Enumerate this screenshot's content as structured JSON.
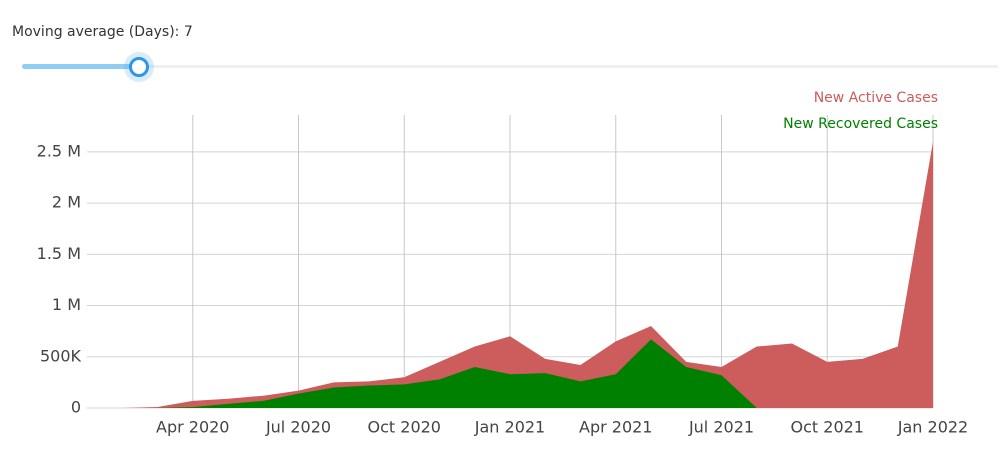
{
  "slider": {
    "label": "Moving average (Days):",
    "value": 7
  },
  "chart_data": {
    "type": "area",
    "x": [
      "2020-01",
      "2020-02",
      "2020-03",
      "2020-04",
      "2020-05",
      "2020-06",
      "2020-07",
      "2020-08",
      "2020-09",
      "2020-10",
      "2020-11",
      "2020-12",
      "2021-01",
      "2021-02",
      "2021-03",
      "2021-04",
      "2021-05",
      "2021-06",
      "2021-07",
      "2021-08",
      "2021-09",
      "2021-10",
      "2021-11",
      "2021-12",
      "2022-01"
    ],
    "series": [
      {
        "name": "New Active Cases",
        "color": "#cd5c5c",
        "values": [
          0,
          0,
          10000,
          70000,
          90000,
          120000,
          170000,
          250000,
          260000,
          300000,
          450000,
          600000,
          700000,
          480000,
          420000,
          650000,
          800000,
          450000,
          400000,
          600000,
          630000,
          450000,
          480000,
          600000,
          2600000
        ]
      },
      {
        "name": "New Recovered Cases",
        "color": "#008000",
        "values": [
          0,
          0,
          0,
          10000,
          40000,
          70000,
          140000,
          200000,
          220000,
          230000,
          280000,
          400000,
          330000,
          340000,
          260000,
          330000,
          670000,
          400000,
          320000,
          0,
          null,
          null,
          null,
          null,
          null
        ]
      }
    ],
    "xlim": [
      "2020-01",
      "2022-01"
    ],
    "xticks": [
      {
        "value": "2020-04",
        "label": "Apr 2020"
      },
      {
        "value": "2020-07",
        "label": "Jul 2020"
      },
      {
        "value": "2020-10",
        "label": "Oct 2020"
      },
      {
        "value": "2021-01",
        "label": "Jan 2021"
      },
      {
        "value": "2021-04",
        "label": "Apr 2021"
      },
      {
        "value": "2021-07",
        "label": "Jul 2021"
      },
      {
        "value": "2021-10",
        "label": "Oct 2021"
      },
      {
        "value": "2022-01",
        "label": "Jan 2022"
      }
    ],
    "ylim": [
      0,
      2860000
    ],
    "yticks": [
      0,
      {
        "value": 500000,
        "label": "500K"
      },
      {
        "value": 1000000,
        "label": "1 M"
      },
      {
        "value": 1500000,
        "label": "1.5 M"
      },
      {
        "value": 2000000,
        "label": "2 M"
      },
      {
        "value": 2500000,
        "label": "2.5 M"
      }
    ],
    "grid": true,
    "legend": "top-right"
  }
}
